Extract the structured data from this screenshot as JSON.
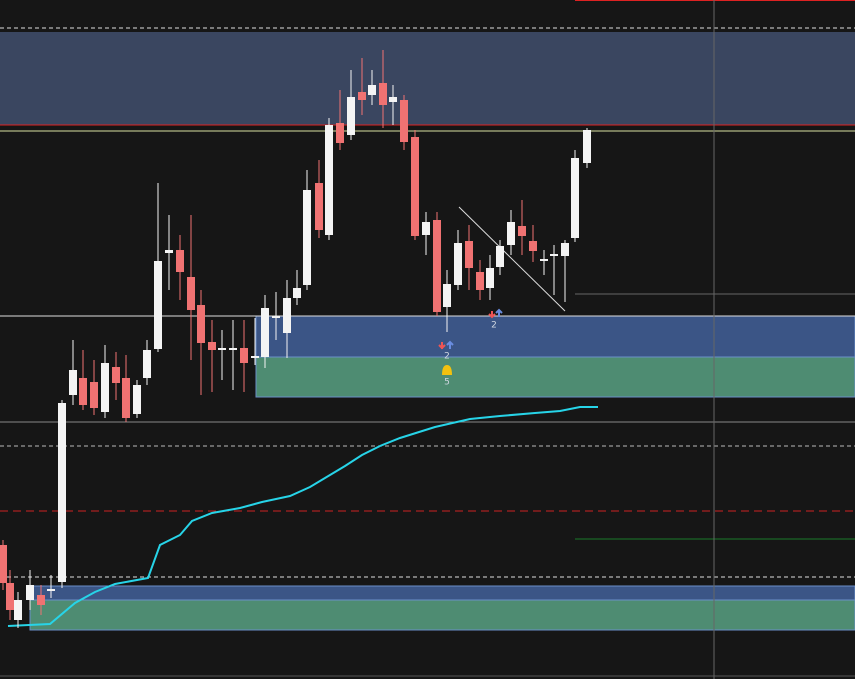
{
  "annotations": {
    "signal_count_1": "2",
    "signal_count_2": "2",
    "alert_count": "5"
  }
}
